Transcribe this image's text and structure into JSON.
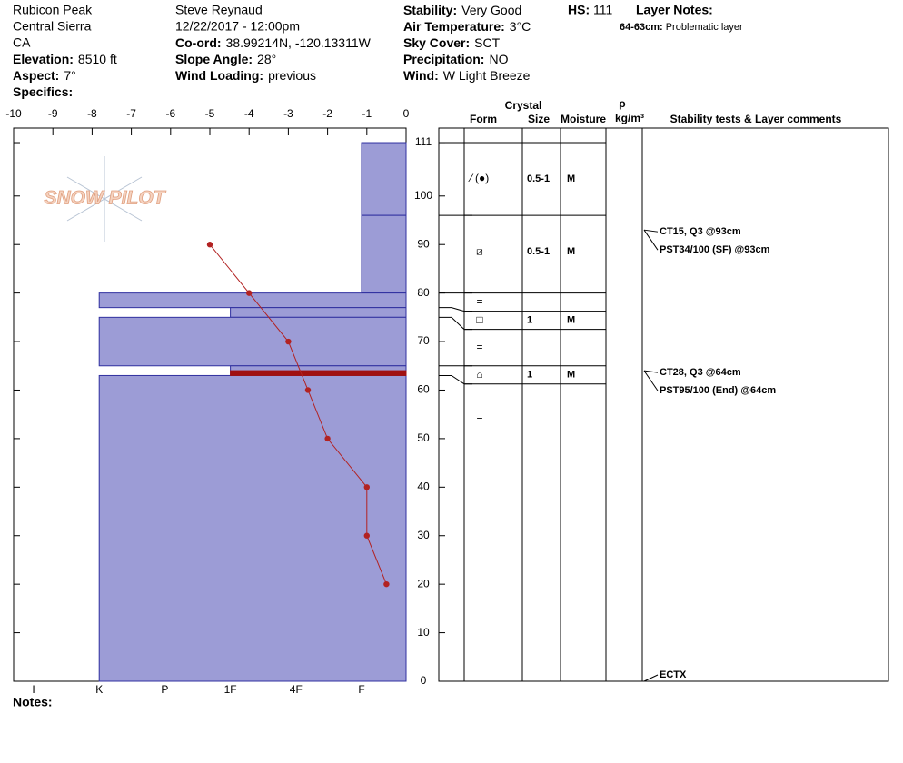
{
  "header": {
    "site": [
      "Rubicon Peak",
      "Central Sierra",
      "CA"
    ],
    "site_fields": [
      {
        "label": "Elevation:",
        "value": "8510 ft"
      },
      {
        "label": "Aspect:",
        "value": "7°"
      },
      {
        "label": "Specifics:"
      }
    ],
    "observer": [
      "Steve Reynaud",
      "12/22/2017 - 12:00pm"
    ],
    "observer_fields": [
      {
        "label": "Co-ord:",
        "value": "38.99214N, -120.13311W"
      },
      {
        "label": "Slope Angle:",
        "value": "28°"
      },
      {
        "label": "Wind Loading:",
        "value": "previous"
      }
    ],
    "conditions": [
      {
        "label": "Stability:",
        "value": "Very Good"
      },
      {
        "label": "Air Temperature:",
        "value": "3°C"
      },
      {
        "label": "Sky Cover:",
        "value": "SCT"
      },
      {
        "label": "Precipitation:",
        "value": "NO"
      },
      {
        "label": "Wind:",
        "value": "W Light Breeze"
      }
    ],
    "hs_label": "HS:",
    "hs": 111,
    "layer_notes_title": "Layer Notes:",
    "layer_notes": [
      {
        "range": "64-63cm:",
        "note": "Problematic layer"
      }
    ]
  },
  "logo": "SNOW PILOT",
  "notes_label": "Notes:",
  "table": {
    "crystal": "Crystal",
    "form": "Form",
    "size": "Size",
    "moisture": "Moisture",
    "rho": "ρ",
    "rho_unit": "kg/m³",
    "comments": "Stability tests & Layer comments"
  },
  "chart_data": {
    "type": "profile",
    "xlim": [
      -10,
      0
    ],
    "xticks": [
      -10,
      -9,
      -8,
      -7,
      -6,
      -5,
      -4,
      -3,
      -2,
      -1,
      0
    ],
    "ylim": [
      0,
      114
    ],
    "yticks": [
      0,
      10,
      20,
      30,
      40,
      50,
      60,
      70,
      80,
      90,
      100,
      111
    ],
    "hardness_scale": [
      "I",
      "K",
      "P",
      "1F",
      "4F",
      "F"
    ],
    "bar_color": "#9c9cd6",
    "layers": [
      {
        "top": 111,
        "bottom": 96,
        "hardness": "F",
        "form": "⁄ (●)",
        "size": "0.5-1",
        "moisture": "M"
      },
      {
        "top": 96,
        "bottom": 80,
        "hardness": "F",
        "form": "⧄",
        "size": "0.5-1",
        "moisture": "M"
      },
      {
        "top": 80,
        "bottom": 77,
        "hardness": "K",
        "form": "="
      },
      {
        "top": 77,
        "bottom": 75,
        "hardness": "1F",
        "form": "□",
        "size": "1",
        "moisture": "M"
      },
      {
        "top": 75,
        "bottom": 65,
        "hardness": "K",
        "form": "="
      },
      {
        "top": 65,
        "bottom": 63,
        "hardness": "1F",
        "form": "⌂",
        "size": "1",
        "moisture": "M"
      },
      {
        "top": 63,
        "bottom": 0,
        "hardness": "K",
        "form": "="
      }
    ],
    "problem": {
      "top": 64,
      "bottom": 63,
      "color": "#a01010"
    },
    "temperature": {
      "color": "#b22222",
      "heights": [
        90,
        80,
        70,
        60,
        50,
        40,
        30,
        20
      ],
      "values": [
        -5,
        -4,
        -3,
        -2.5,
        -2,
        -1,
        -1,
        -0.5
      ]
    },
    "tests": [
      {
        "text": "CT15, Q3 @93cm",
        "height": 93
      },
      {
        "text": "PST34/100 (SF) @93cm",
        "height": 93
      },
      {
        "text": "CT28, Q3 @64cm",
        "height": 64
      },
      {
        "text": "PST95/100 (End) @64cm",
        "height": 64
      },
      {
        "text": "ECTX",
        "height": 0
      }
    ]
  }
}
